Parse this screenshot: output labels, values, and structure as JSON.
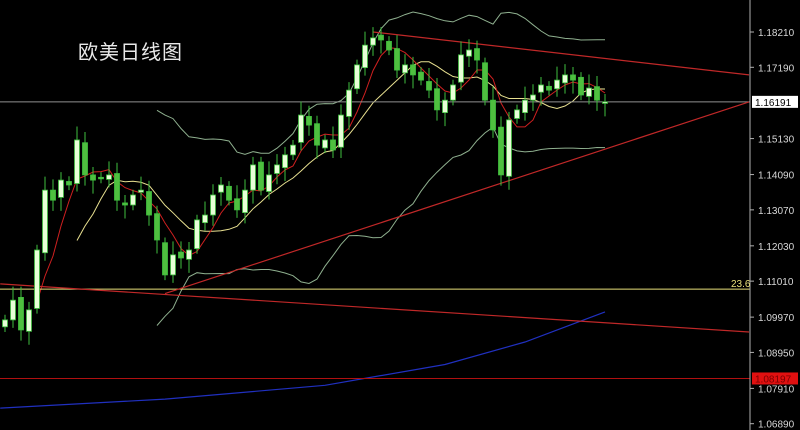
{
  "title": "欧美日线图",
  "chart_data": {
    "type": "candlestick",
    "title": "欧美日线图",
    "ylim": [
      1.068,
      1.1905
    ],
    "y_ticks": [
      "1.18210",
      "1.17190",
      "1.15130",
      "1.14090",
      "1.13070",
      "1.12030",
      "1.11010",
      "1.09970",
      "1.08950",
      "1.07910",
      "1.06890"
    ],
    "grid": false,
    "closes": [
      1.0989,
      1.1046,
      1.096,
      1.1018,
      1.1191,
      1.1364,
      1.1335,
      1.1393,
      1.1379,
      1.1509,
      1.1408,
      1.1393,
      1.1399,
      1.1408,
      1.1335,
      1.1321,
      1.135,
      1.1364,
      1.1292,
      1.122,
      1.1119,
      1.1177,
      1.1168,
      1.1191,
      1.1278,
      1.1292,
      1.135,
      1.1379,
      1.1335,
      1.1307,
      1.1364,
      1.1437,
      1.1364,
      1.1408,
      1.1437,
      1.1466,
      1.1494,
      1.1581,
      1.1552,
      1.1494,
      1.1509,
      1.148,
      1.1581,
      1.1653,
      1.1726,
      1.1783,
      1.1804,
      1.1798,
      1.1769,
      1.1711,
      1.1726,
      1.1697,
      1.1682,
      1.1653,
      1.1596,
      1.1624,
      1.1668,
      1.1755,
      1.1769,
      1.174,
      1.1624,
      1.1538,
      1.1408,
      1.1567,
      1.1596,
      1.1624,
      1.1639,
      1.1668,
      1.1653,
      1.1682,
      1.1697,
      1.1682,
      1.1639,
      1.1659,
      1.1624,
      1.1619
    ],
    "current_price": {
      "label": "1.16191",
      "value": 1.16191,
      "color": "#ffffff"
    },
    "fib_level": {
      "label": "23.6",
      "value": 1.1078,
      "color": "#e8e07a"
    },
    "support_level": {
      "label": "1.08197",
      "value": 1.08197,
      "color": "#e01010"
    },
    "trendlines": [
      {
        "from": [
          46,
          1.1821
        ],
        "to": [
          93,
          1.1697
        ],
        "color": "#c02828"
      },
      {
        "from": [
          20,
          1.1065
        ],
        "to": [
          93,
          1.1619
        ],
        "color": "#c02828"
      },
      {
        "from": [
          -0.6,
          1.1093
        ],
        "to": [
          93,
          1.0954
        ],
        "color": "#c02828"
      }
    ],
    "long_ma": {
      "color": "#2030c0",
      "points": [
        [
          -0.6,
          1.0734
        ],
        [
          20,
          1.076
        ],
        [
          40,
          1.08
        ],
        [
          55,
          1.086
        ],
        [
          65,
          1.0925
        ],
        [
          75,
          1.1012
        ]
      ]
    },
    "indicators": {
      "ma_fast_color": "#d02020",
      "ma_slow_color": "#e8e090",
      "bollinger_color": "#8fb08f"
    },
    "candle_colors": {
      "up_body": "#e8ffd8",
      "down_body": "#4fbf3f",
      "outline": "#3fbf3f"
    }
  }
}
